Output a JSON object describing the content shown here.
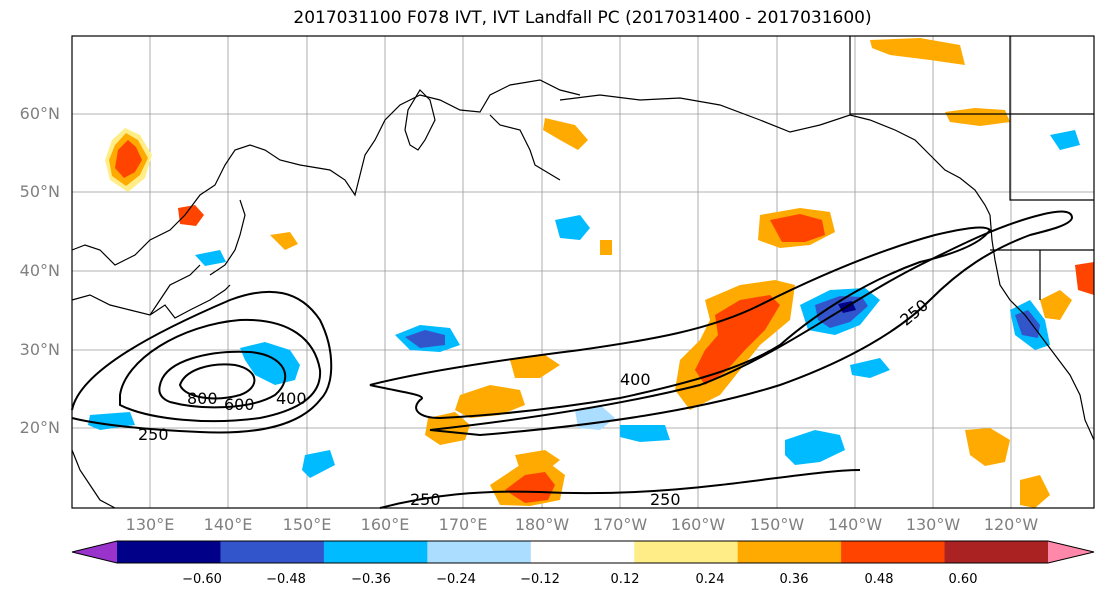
{
  "title": "2017031100 F078 IVT, IVT Landfall PC (2017031400 - 2017031600)",
  "lat_labels": [
    "60°N",
    "50°N",
    "40°N",
    "30°N",
    "20°N"
  ],
  "lon_labels": [
    "130°E",
    "140°E",
    "150°E",
    "160°E",
    "170°E",
    "180°W",
    "170°W",
    "160°W",
    "150°W",
    "140°W",
    "130°W",
    "120°W"
  ],
  "colorbar": {
    "colors": [
      "#9933cc",
      "#000088",
      "#3355cc",
      "#00bbff",
      "#aaddff",
      "#ffffff",
      "#ffee88",
      "#ffaa00",
      "#ff4400",
      "#aa2222",
      "#ff88aa"
    ],
    "ticks": [
      "−0.60",
      "−0.48",
      "−0.36",
      "−0.24",
      "−0.12",
      "0.12",
      "0.24",
      "0.36",
      "0.48",
      "0.60"
    ]
  },
  "contour_labels": [
    "800",
    "600",
    "400",
    "250",
    "400",
    "250",
    "250",
    "250"
  ],
  "colors": {
    "orange": "#ffaa00",
    "red": "#ff4400",
    "yellow": "#ffee88",
    "cyan": "#00bbff",
    "lightblue": "#aaddff",
    "blue": "#3355cc"
  }
}
